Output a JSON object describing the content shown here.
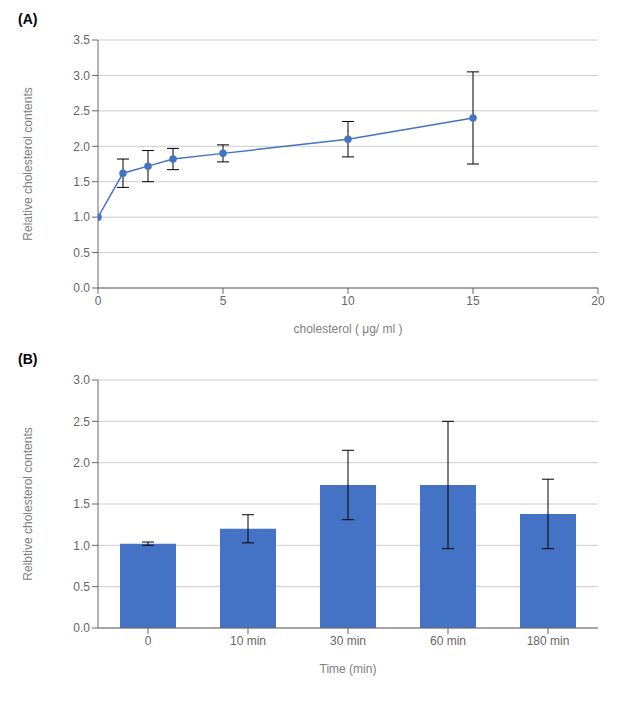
{
  "chart_data": [
    {
      "type": "line",
      "title": "(A)",
      "xlabel": "cholesterol ( μg/ ml )",
      "ylabel": "Relative cholesterol contents",
      "x": [
        0,
        1,
        2,
        3,
        5,
        10,
        15
      ],
      "values": [
        1.0,
        1.62,
        1.72,
        1.82,
        1.9,
        2.1,
        2.4
      ],
      "yerr": [
        0.0,
        0.2,
        0.22,
        0.15,
        0.12,
        0.25,
        0.65
      ],
      "xlim": [
        0,
        20
      ],
      "xticks": [
        0,
        5,
        10,
        15,
        20
      ],
      "ylim": [
        0,
        3.5
      ],
      "yticks": [
        {
          "value": 0,
          "label": "0.0"
        },
        0.5,
        {
          "value": 1,
          "label": "1.0"
        },
        1.5,
        {
          "value": 2,
          "label": "2.0"
        },
        2.5,
        {
          "value": 3,
          "label": "3.0"
        },
        3.5
      ],
      "color": "#4472C4",
      "marker": "o",
      "grid": "y"
    },
    {
      "type": "bar",
      "title": "(B)",
      "xlabel": "Time (min)",
      "ylabel": "Relbtive cholesterol contents",
      "categories": [
        "0",
        "10 min",
        "30 min",
        "60 min",
        "180 min"
      ],
      "values": [
        1.02,
        1.2,
        1.73,
        1.73,
        1.38
      ],
      "yerr": [
        0.02,
        0.17,
        0.42,
        0.77,
        0.42
      ],
      "ylim": [
        0,
        3.0
      ],
      "yticks": [
        {
          "value": 0,
          "label": "0.0"
        },
        0.5,
        {
          "value": 1,
          "label": "1.0"
        },
        1.5,
        {
          "value": 2,
          "label": "2.0"
        },
        2.5,
        {
          "value": 3,
          "label": "3.0"
        }
      ],
      "color": "#4472C4",
      "grid": "y"
    }
  ]
}
